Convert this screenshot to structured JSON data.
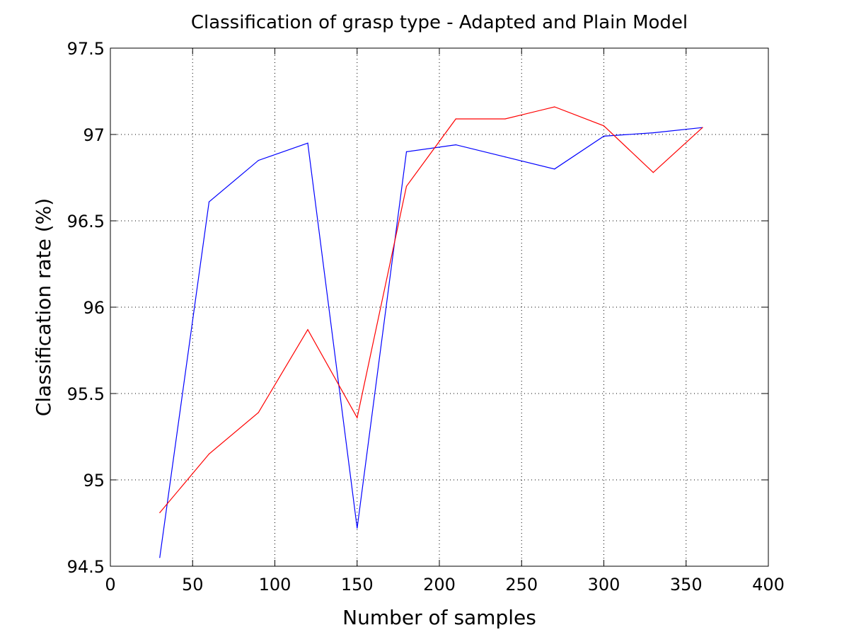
{
  "chart_data": {
    "type": "line",
    "title": "Classification of grasp type - Adapted and Plain Model",
    "xlabel": "Number of samples",
    "ylabel": "Classification rate (%)",
    "xlim": [
      0,
      400
    ],
    "ylim": [
      94.5,
      97.5
    ],
    "xticks": [
      0,
      50,
      100,
      150,
      200,
      250,
      300,
      350,
      400
    ],
    "yticks": [
      94.5,
      95,
      95.5,
      96,
      96.5,
      97,
      97.5
    ],
    "xtick_labels": [
      "0",
      "50",
      "100",
      "150",
      "200",
      "250",
      "300",
      "350",
      "400"
    ],
    "ytick_labels": [
      "94.5",
      "95",
      "95.5",
      "96",
      "96.5",
      "97",
      "97.5"
    ],
    "grid": true,
    "grid_style": "dotted",
    "legend": "none",
    "x": [
      30,
      60,
      90,
      120,
      150,
      180,
      210,
      240,
      270,
      300,
      330,
      360
    ],
    "series": [
      {
        "color": "#0000ff",
        "values": [
          94.55,
          96.61,
          96.85,
          96.95,
          94.72,
          96.9,
          96.94,
          96.87,
          96.8,
          96.99,
          97.01,
          97.04
        ]
      },
      {
        "color": "#ff0000",
        "values": [
          94.81,
          95.15,
          95.39,
          95.87,
          95.36,
          96.7,
          97.09,
          97.09,
          97.16,
          97.05,
          96.78,
          97.04
        ]
      }
    ]
  }
}
